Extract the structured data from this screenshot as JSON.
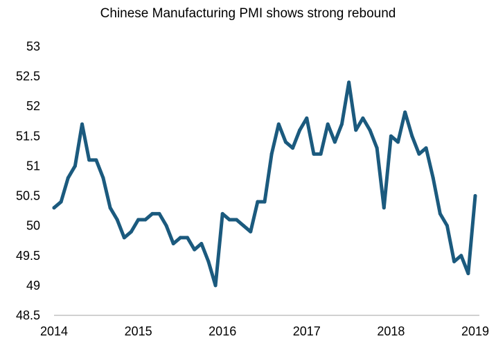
{
  "chart_data": {
    "type": "line",
    "title": "Chinese Manufacturing PMI shows strong rebound",
    "xlabel": "",
    "ylabel": "",
    "ylim": [
      48.5,
      53
    ],
    "yticks": [
      "48.5",
      "49",
      "49.5",
      "50",
      "50.5",
      "51",
      "51.5",
      "52",
      "52.5",
      "53"
    ],
    "xticks": [
      "2014",
      "2015",
      "2016",
      "2017",
      "2018",
      "2019"
    ],
    "x_start": "2014-01",
    "x_end": "2019-01",
    "grid": false,
    "legend": "none",
    "series": [
      {
        "color": "#1b5a7e",
        "x": [
          "2014-01",
          "2014-02",
          "2014-03",
          "2014-04",
          "2014-05",
          "2014-06",
          "2014-07",
          "2014-08",
          "2014-09",
          "2014-10",
          "2014-11",
          "2014-12",
          "2015-01",
          "2015-02",
          "2015-03",
          "2015-04",
          "2015-05",
          "2015-06",
          "2015-07",
          "2015-08",
          "2015-09",
          "2015-10",
          "2015-11",
          "2015-12",
          "2016-01",
          "2016-02",
          "2016-03",
          "2016-04",
          "2016-05",
          "2016-06",
          "2016-07",
          "2016-08",
          "2016-09",
          "2016-10",
          "2016-11",
          "2016-12",
          "2017-01",
          "2017-02",
          "2017-03",
          "2017-04",
          "2017-05",
          "2017-06",
          "2017-07",
          "2017-08",
          "2017-09",
          "2017-10",
          "2017-11",
          "2017-12",
          "2018-01",
          "2018-02",
          "2018-03",
          "2018-04",
          "2018-05",
          "2018-06",
          "2018-07",
          "2018-08",
          "2018-09",
          "2018-10",
          "2018-11",
          "2018-12",
          "2019-01"
        ],
        "values": [
          50.3,
          50.4,
          50.8,
          51.0,
          51.7,
          51.1,
          51.1,
          50.8,
          50.3,
          50.1,
          49.8,
          49.9,
          50.1,
          50.1,
          50.2,
          50.2,
          50.0,
          49.7,
          49.8,
          49.8,
          49.6,
          49.7,
          49.4,
          49.0,
          50.2,
          50.1,
          50.1,
          50.0,
          49.9,
          50.4,
          50.4,
          51.2,
          51.7,
          51.4,
          51.3,
          51.6,
          51.8,
          51.2,
          51.2,
          51.7,
          51.4,
          51.7,
          52.4,
          51.6,
          51.8,
          51.6,
          51.3,
          50.3,
          51.5,
          51.4,
          51.9,
          51.5,
          51.2,
          51.3,
          50.8,
          50.2,
          50.0,
          49.4,
          49.5,
          49.2,
          50.5
        ]
      }
    ]
  }
}
